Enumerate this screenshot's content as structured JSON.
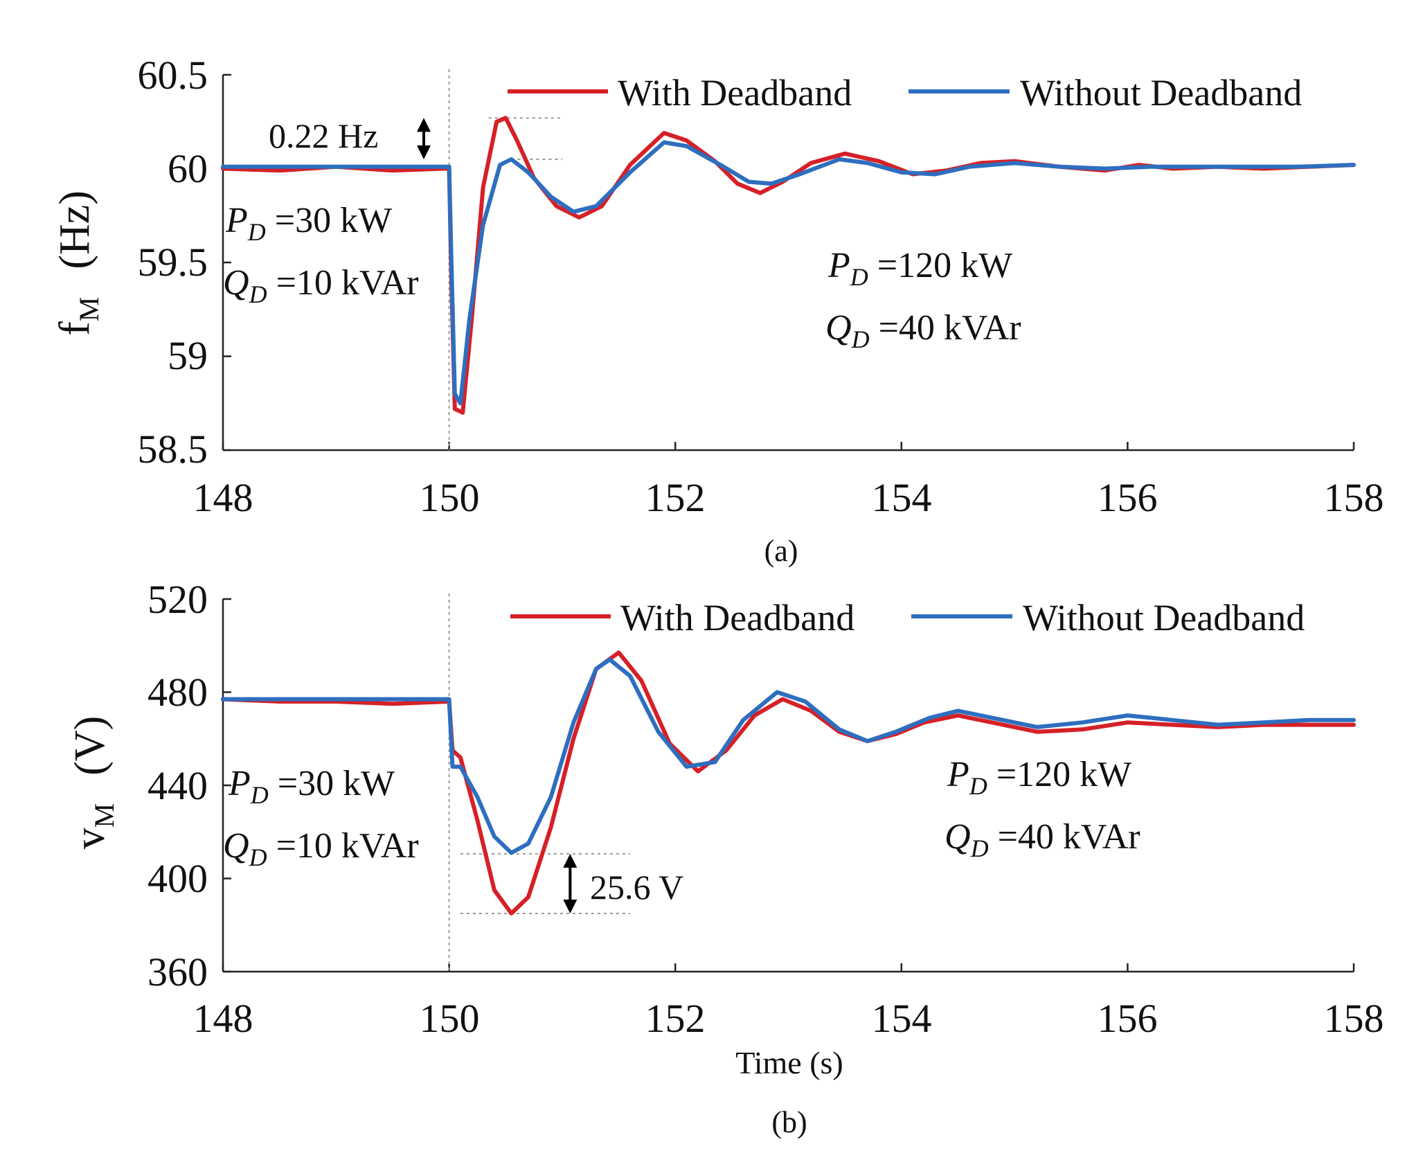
{
  "chart_data": [
    {
      "type": "line",
      "panel_label": "(a)",
      "ylabel": "f",
      "ylabel_sub": "M",
      "ylabel_unit": "(Hz)",
      "xlabel": "",
      "xlim": [
        148,
        158
      ],
      "ylim": [
        58.5,
        60.5
      ],
      "xticks": [
        148,
        150,
        152,
        154,
        156,
        158
      ],
      "xtick_labels": [
        "148",
        "150",
        "152",
        "154",
        "156",
        "158"
      ],
      "yticks": [
        58.5,
        59,
        59.5,
        60,
        60.5
      ],
      "ytick_labels": [
        "58.5",
        "59",
        "59.5",
        "60",
        "60.5"
      ],
      "legend": {
        "placement": "top-right",
        "entries": [
          "With Deadband",
          "Without Deadband"
        ]
      },
      "event_time": 150,
      "series": [
        {
          "name": "With Deadband",
          "color": "#d62027",
          "points": [
            [
              148,
              60.0
            ],
            [
              148.5,
              59.99
            ],
            [
              149,
              60.01
            ],
            [
              149.5,
              59.99
            ],
            [
              149.95,
              60.0
            ],
            [
              150.0,
              60.0
            ],
            [
              150.02,
              59.4
            ],
            [
              150.05,
              58.72
            ],
            [
              150.12,
              58.7
            ],
            [
              150.2,
              59.2
            ],
            [
              150.3,
              59.9
            ],
            [
              150.42,
              60.25
            ],
            [
              150.5,
              60.27
            ],
            [
              150.6,
              60.15
            ],
            [
              150.75,
              59.95
            ],
            [
              150.95,
              59.8
            ],
            [
              151.15,
              59.74
            ],
            [
              151.35,
              59.8
            ],
            [
              151.6,
              60.02
            ],
            [
              151.9,
              60.19
            ],
            [
              152.1,
              60.15
            ],
            [
              152.35,
              60.04
            ],
            [
              152.55,
              59.92
            ],
            [
              152.75,
              59.87
            ],
            [
              152.95,
              59.93
            ],
            [
              153.2,
              60.03
            ],
            [
              153.5,
              60.08
            ],
            [
              153.8,
              60.04
            ],
            [
              154.1,
              59.97
            ],
            [
              154.4,
              59.99
            ],
            [
              154.7,
              60.03
            ],
            [
              155.0,
              60.04
            ],
            [
              155.4,
              60.01
            ],
            [
              155.8,
              59.99
            ],
            [
              156.1,
              60.02
            ],
            [
              156.4,
              60.0
            ],
            [
              156.8,
              60.01
            ],
            [
              157.2,
              60.0
            ],
            [
              157.6,
              60.01
            ],
            [
              158.0,
              60.02
            ]
          ]
        },
        {
          "name": "Without Deadband",
          "color": "#2e6ebf",
          "points": [
            [
              148,
              60.01
            ],
            [
              148.5,
              60.01
            ],
            [
              149,
              60.01
            ],
            [
              149.5,
              60.01
            ],
            [
              149.95,
              60.01
            ],
            [
              150.0,
              60.01
            ],
            [
              150.02,
              59.5
            ],
            [
              150.05,
              58.8
            ],
            [
              150.1,
              58.75
            ],
            [
              150.18,
              59.2
            ],
            [
              150.3,
              59.7
            ],
            [
              150.45,
              60.02
            ],
            [
              150.55,
              60.05
            ],
            [
              150.7,
              59.98
            ],
            [
              150.9,
              59.85
            ],
            [
              151.1,
              59.77
            ],
            [
              151.3,
              59.8
            ],
            [
              151.6,
              59.98
            ],
            [
              151.9,
              60.14
            ],
            [
              152.1,
              60.12
            ],
            [
              152.4,
              60.02
            ],
            [
              152.65,
              59.93
            ],
            [
              152.85,
              59.92
            ],
            [
              153.1,
              59.97
            ],
            [
              153.45,
              60.05
            ],
            [
              153.7,
              60.03
            ],
            [
              154.0,
              59.98
            ],
            [
              154.3,
              59.97
            ],
            [
              154.6,
              60.01
            ],
            [
              155.0,
              60.03
            ],
            [
              155.4,
              60.01
            ],
            [
              155.8,
              60.0
            ],
            [
              156.2,
              60.01
            ],
            [
              156.6,
              60.01
            ],
            [
              157.0,
              60.01
            ],
            [
              157.5,
              60.01
            ],
            [
              158.0,
              60.02
            ]
          ]
        }
      ],
      "annotations": [
        {
          "text": "0.22 Hz",
          "role": "peak-difference",
          "y_from": 60.05,
          "y_to": 60.27,
          "x_arrow": 150.9
        },
        {
          "line1_main": "P",
          "line1_sub": "D",
          "line1_rest": " =30 kW",
          "line2_main": "Q",
          "line2_sub": "D",
          "line2_rest": " =10 kVAr",
          "placement": "left"
        },
        {
          "line1_main": "P",
          "line1_sub": "D",
          "line1_rest": " =120 kW",
          "line2_main": "Q",
          "line2_sub": "D",
          "line2_rest": " =40 kVAr",
          "placement": "right"
        }
      ]
    },
    {
      "type": "line",
      "panel_label": "(b)",
      "ylabel": "v",
      "ylabel_sub": "M",
      "ylabel_unit": "(V)",
      "xlabel": "Time (s)",
      "xlim": [
        148,
        158
      ],
      "ylim": [
        360,
        520
      ],
      "xticks": [
        148,
        150,
        152,
        154,
        156,
        158
      ],
      "xtick_labels": [
        "148",
        "150",
        "152",
        "154",
        "156",
        "158"
      ],
      "yticks": [
        360,
        400,
        440,
        480,
        520
      ],
      "ytick_labels": [
        "360",
        "400",
        "440",
        "480",
        "520"
      ],
      "legend": {
        "placement": "top-right",
        "entries": [
          "With Deadband",
          "Without Deadband"
        ]
      },
      "event_time": 150,
      "series": [
        {
          "name": "With Deadband",
          "color": "#d62027",
          "points": [
            [
              148,
              477
            ],
            [
              148.5,
              476
            ],
            [
              149,
              476
            ],
            [
              149.5,
              475
            ],
            [
              150.0,
              476
            ],
            [
              150.03,
              455
            ],
            [
              150.1,
              452
            ],
            [
              150.25,
              425
            ],
            [
              150.4,
              395
            ],
            [
              150.55,
              385
            ],
            [
              150.7,
              392
            ],
            [
              150.9,
              422
            ],
            [
              151.1,
              460
            ],
            [
              151.3,
              490
            ],
            [
              151.5,
              497
            ],
            [
              151.7,
              485
            ],
            [
              151.95,
              458
            ],
            [
              152.2,
              446
            ],
            [
              152.45,
              455
            ],
            [
              152.7,
              470
            ],
            [
              152.95,
              477
            ],
            [
              153.2,
              472
            ],
            [
              153.45,
              463
            ],
            [
              153.7,
              459
            ],
            [
              153.95,
              462
            ],
            [
              154.2,
              467
            ],
            [
              154.5,
              470
            ],
            [
              154.8,
              467
            ],
            [
              155.2,
              463
            ],
            [
              155.6,
              464
            ],
            [
              156.0,
              467
            ],
            [
              156.4,
              466
            ],
            [
              156.8,
              465
            ],
            [
              157.2,
              466
            ],
            [
              157.6,
              466
            ],
            [
              158.0,
              466
            ]
          ]
        },
        {
          "name": "Without Deadband",
          "color": "#2e6ebf",
          "points": [
            [
              148,
              477
            ],
            [
              148.5,
              477
            ],
            [
              149,
              477
            ],
            [
              149.5,
              477
            ],
            [
              150.0,
              477
            ],
            [
              150.03,
              448
            ],
            [
              150.1,
              448
            ],
            [
              150.25,
              435
            ],
            [
              150.4,
              418
            ],
            [
              150.55,
              411
            ],
            [
              150.7,
              415
            ],
            [
              150.9,
              435
            ],
            [
              151.1,
              467
            ],
            [
              151.3,
              490
            ],
            [
              151.42,
              494
            ],
            [
              151.6,
              487
            ],
            [
              151.85,
              463
            ],
            [
              152.1,
              448
            ],
            [
              152.35,
              450
            ],
            [
              152.6,
              468
            ],
            [
              152.9,
              480
            ],
            [
              153.15,
              476
            ],
            [
              153.45,
              464
            ],
            [
              153.7,
              459
            ],
            [
              153.95,
              463
            ],
            [
              154.25,
              469
            ],
            [
              154.5,
              472
            ],
            [
              154.8,
              469
            ],
            [
              155.2,
              465
            ],
            [
              155.6,
              467
            ],
            [
              156.0,
              470
            ],
            [
              156.4,
              468
            ],
            [
              156.8,
              466
            ],
            [
              157.2,
              467
            ],
            [
              157.6,
              468
            ],
            [
              158.0,
              468
            ]
          ]
        }
      ],
      "annotations": [
        {
          "text": "25.6 V",
          "role": "dip-difference",
          "y_from": 385,
          "y_to": 410.6,
          "x_arrow": 151.07
        },
        {
          "line1_main": "P",
          "line1_sub": "D",
          "line1_rest": " =30 kW",
          "line2_main": "Q",
          "line2_sub": "D",
          "line2_rest": " =10 kVAr",
          "placement": "left"
        },
        {
          "line1_main": "P",
          "line1_sub": "D",
          "line1_rest": " =120 kW",
          "line2_main": "Q",
          "line2_sub": "D",
          "line2_rest": " =40 kVAr",
          "placement": "right"
        }
      ]
    }
  ]
}
